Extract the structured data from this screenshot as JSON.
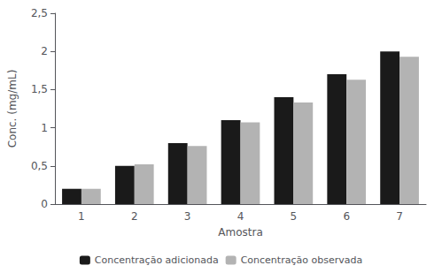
{
  "chart_data": {
    "type": "bar",
    "xlabel": "Amostra",
    "ylabel": "Conc. (mg/mL)",
    "categories": [
      "1",
      "2",
      "3",
      "4",
      "5",
      "6",
      "7"
    ],
    "series": [
      {
        "name": "Concentração adicionada",
        "color": "#1a1a1a",
        "values": [
          0.2,
          0.5,
          0.8,
          1.1,
          1.4,
          1.7,
          2.0
        ]
      },
      {
        "name": "Concentração observada",
        "color": "#b3b3b3",
        "values": [
          0.2,
          0.52,
          0.76,
          1.07,
          1.33,
          1.63,
          1.93
        ]
      }
    ],
    "ylim": [
      0,
      2.5
    ],
    "yticks": [
      0,
      {
        "value": 0.5,
        "label": "0,5"
      },
      1,
      {
        "value": 1.5,
        "label": "1,5"
      },
      2,
      {
        "value": 2.5,
        "label": "2,5"
      }
    ],
    "grid": false,
    "legend": "bottom"
  }
}
